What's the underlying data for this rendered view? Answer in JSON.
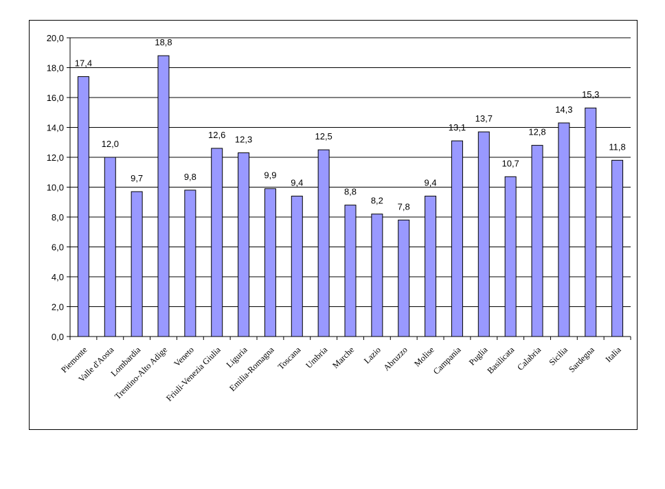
{
  "chart_data": {
    "type": "bar",
    "title": "",
    "xlabel": "",
    "ylabel": "",
    "ylim": [
      0,
      20
    ],
    "y_ticks": [
      "0,0",
      "2,0",
      "4,0",
      "6,0",
      "8,0",
      "10,0",
      "12,0",
      "14,0",
      "16,0",
      "18,0",
      "20,0"
    ],
    "grid": true,
    "legend": "none",
    "bar_color": "#9999ff",
    "categories": [
      "Piemonte",
      "Valle d'Aosta",
      "Lombardia",
      "Trentino-Alto Adige",
      "Veneto",
      "Friuli-Venezia Giulia",
      "Liguria",
      "Emilia-Romagna",
      "Toscana",
      "Umbria",
      "Marche",
      "Lazio",
      "Abruzzo",
      "Molise",
      "Campania",
      "Puglia",
      "Basilicata",
      "Calabria",
      "Sicilia",
      "Sardegna",
      "Italia"
    ],
    "values": [
      17.4,
      12.0,
      9.7,
      18.8,
      9.8,
      12.6,
      12.3,
      9.9,
      9.4,
      12.5,
      8.8,
      8.2,
      7.8,
      9.4,
      13.1,
      13.7,
      10.7,
      12.8,
      14.3,
      15.3,
      11.8
    ],
    "value_labels": [
      "17,4",
      "12,0",
      "9,7",
      "18,8",
      "9,8",
      "12,6",
      "12,3",
      "9,9",
      "9,4",
      "12,5",
      "8,8",
      "8,2",
      "7,8",
      "9,4",
      "13,1",
      "13,7",
      "10,7",
      "12,8",
      "14,3",
      "15,3",
      "11,8"
    ]
  }
}
